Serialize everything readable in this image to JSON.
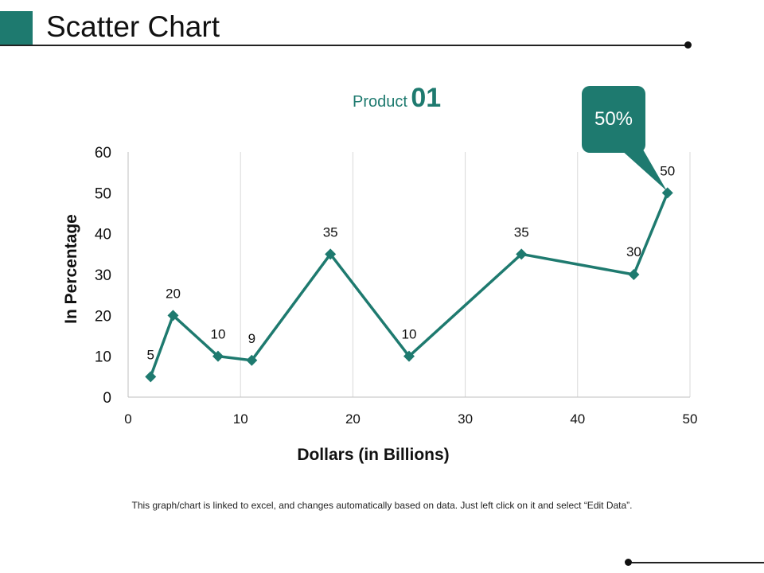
{
  "slide": {
    "title": "Scatter Chart",
    "product_word": "Product",
    "product_number": "01",
    "callout": "50%",
    "footnote": "This graph/chart is linked to excel, and changes automatically based on data. Just left click on it and select “Edit Data”."
  },
  "colors": {
    "accent": "#1e7a6f",
    "gridline": "#d9d9d9",
    "axis": "#bfbfbf",
    "text": "#111111"
  },
  "chart_data": {
    "type": "scatter",
    "title": "Product 01",
    "xlabel": "Dollars (in Billions)",
    "ylabel": "In Percentage",
    "xlim": [
      0,
      50
    ],
    "ylim": [
      0,
      60
    ],
    "xticks": [
      0,
      10,
      20,
      30,
      40,
      50
    ],
    "yticks": [
      0,
      10,
      20,
      30,
      40,
      50,
      60
    ],
    "grid": "vertical",
    "legend": "none",
    "series": [
      {
        "name": "Product 01",
        "x": [
          2,
          4,
          8,
          11,
          18,
          25,
          35,
          45,
          48
        ],
        "y": [
          5,
          20,
          10,
          9,
          35,
          10,
          35,
          30,
          50
        ],
        "labels": [
          "5",
          "20",
          "10",
          "9",
          "35",
          "10",
          "35",
          "30",
          "50"
        ]
      }
    ],
    "annotation": "50%"
  }
}
